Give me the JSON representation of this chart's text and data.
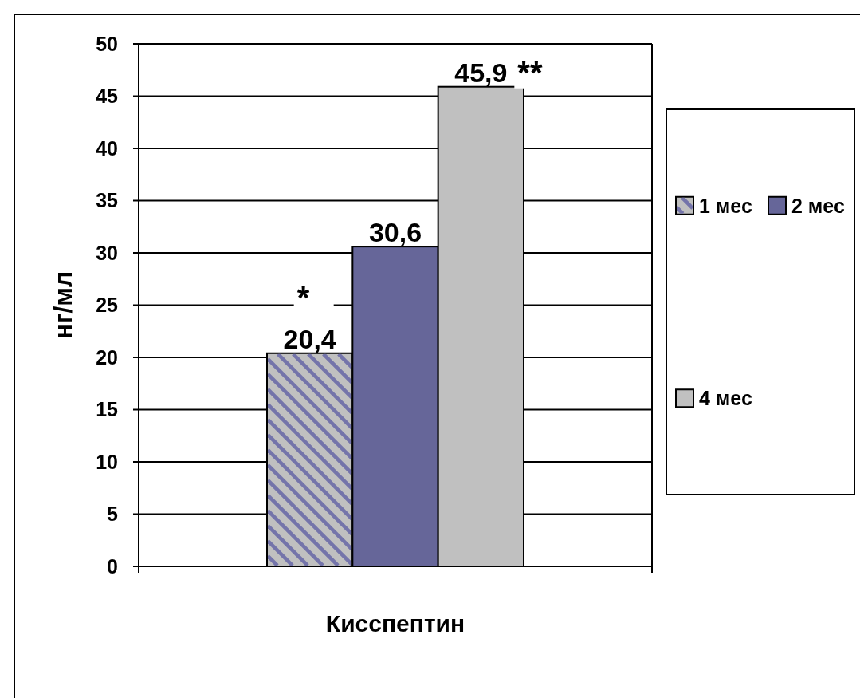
{
  "chart_data": {
    "type": "bar",
    "categories": [
      "Кисспептин"
    ],
    "ylabel": "нг/мл",
    "ylim": [
      0,
      50
    ],
    "yticks": [
      0,
      5,
      10,
      15,
      20,
      25,
      30,
      35,
      40,
      45,
      50
    ],
    "grid": "y",
    "legend": "right",
    "series": [
      {
        "name": "1 мес",
        "color": "#c0c0c0",
        "values": [
          20.4
        ],
        "value_labels": [
          "20,4"
        ]
      },
      {
        "name": "2 мес",
        "color": "#666699",
        "values": [
          30.6
        ],
        "value_labels": [
          "30,6"
        ]
      },
      {
        "name": "4 мес",
        "color": "#c0c0c0",
        "values": [
          45.9
        ],
        "value_labels": [
          "45,9"
        ]
      }
    ],
    "annotations": [
      "*",
      "**"
    ]
  }
}
